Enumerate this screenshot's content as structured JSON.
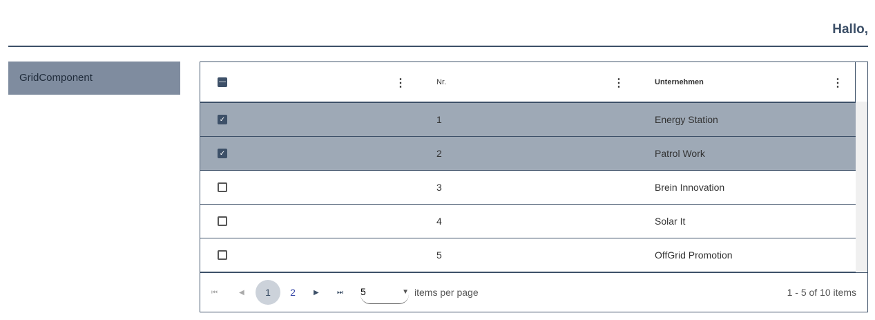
{
  "header": {
    "greeting": "Hallo,"
  },
  "sidebar": {
    "items": [
      {
        "label": "GridComponent"
      }
    ]
  },
  "grid": {
    "columns": [
      "",
      "Nr.",
      "Unternehmen"
    ],
    "rows": [
      {
        "nr": "1",
        "company": "Energy Station",
        "selected": true
      },
      {
        "nr": "2",
        "company": "Patrol Work",
        "selected": true
      },
      {
        "nr": "3",
        "company": "Brein Innovation",
        "selected": false
      },
      {
        "nr": "4",
        "company": "Solar It",
        "selected": false
      },
      {
        "nr": "5",
        "company": "OffGrid Promotion",
        "selected": false
      }
    ],
    "pager": {
      "pages": [
        "1",
        "2"
      ],
      "current": "1",
      "page_size": "5",
      "items_per_page_label": "items per page",
      "info": "1 - 5 of 10 items"
    }
  }
}
